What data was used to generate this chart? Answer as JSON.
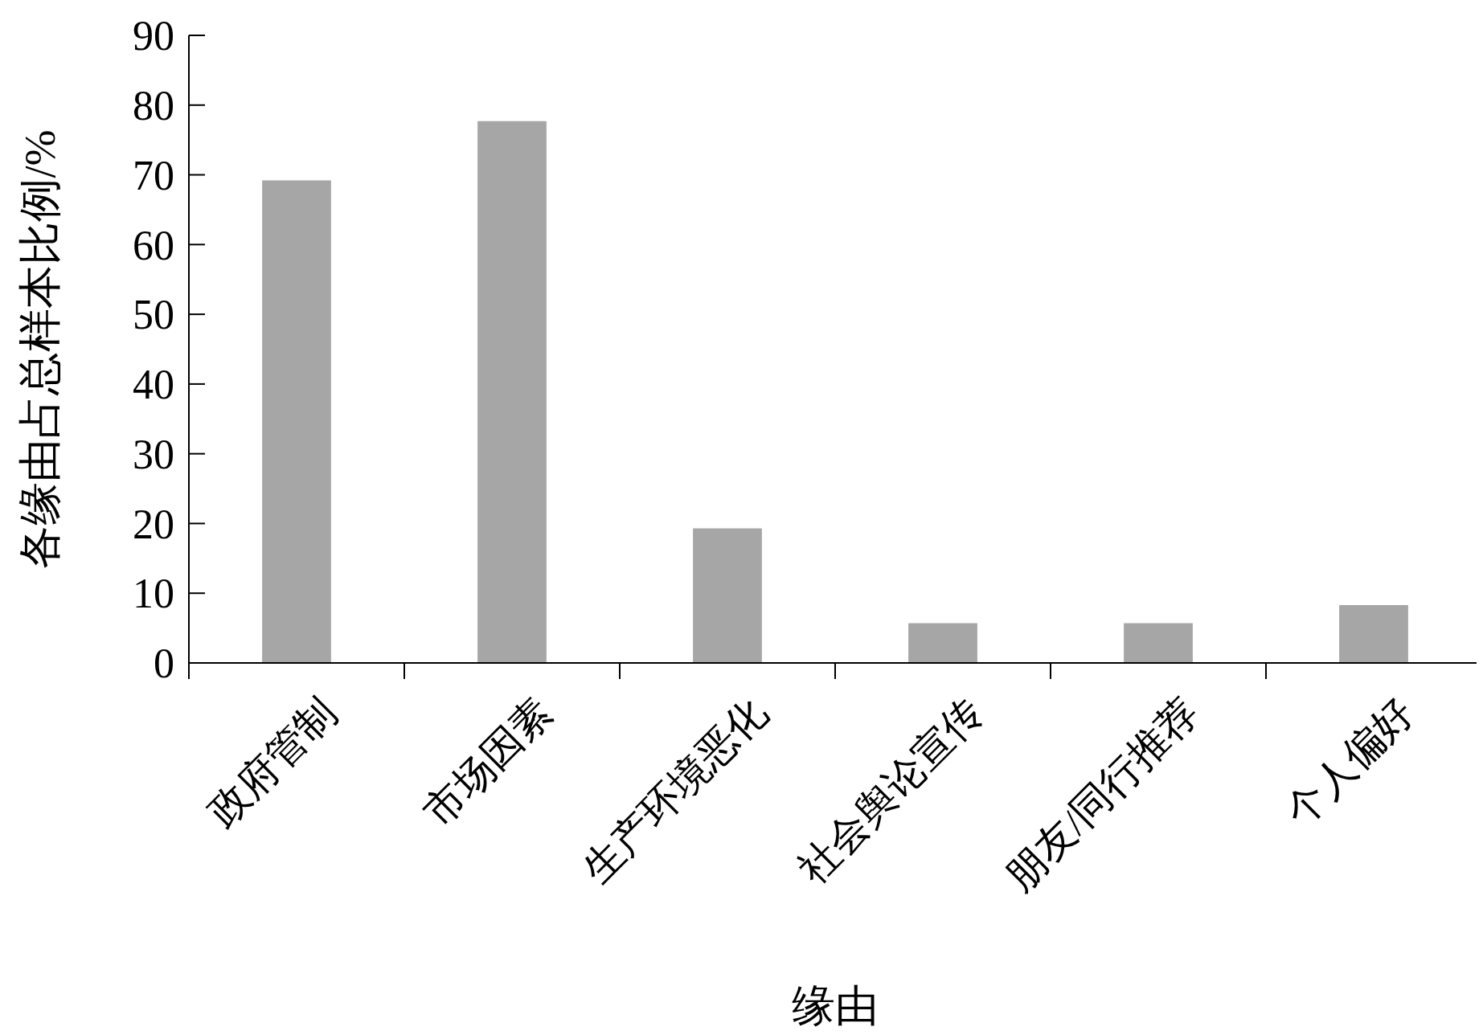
{
  "chart_data": {
    "type": "bar",
    "xlabel": "缘由",
    "ylabel": "各缘由占总样本比例/%",
    "categories": [
      "政府管制",
      "市场因素",
      "生产环境恶化",
      "社会舆论宣传",
      "朋友/同行推荐",
      "个人偏好"
    ],
    "values": [
      69.2,
      77.7,
      19.3,
      5.7,
      5.7,
      8.3
    ],
    "color": "#a6a6a6",
    "ylim": [
      0,
      90
    ],
    "yticks": [
      0,
      10,
      20,
      30,
      40,
      50,
      60,
      70,
      80,
      90
    ],
    "grid": false
  }
}
